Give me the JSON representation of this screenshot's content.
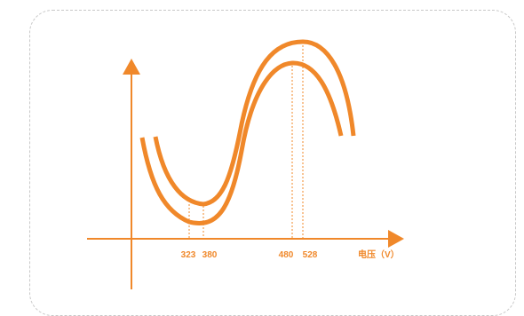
{
  "colors": {
    "accent": "#F0882A",
    "card_border": "#C8C8C8"
  },
  "x_ticks": [
    {
      "label": "323"
    },
    {
      "label": "380"
    },
    {
      "label": "480"
    },
    {
      "label": "528"
    }
  ],
  "x_axis_label": "电压（V）"
}
